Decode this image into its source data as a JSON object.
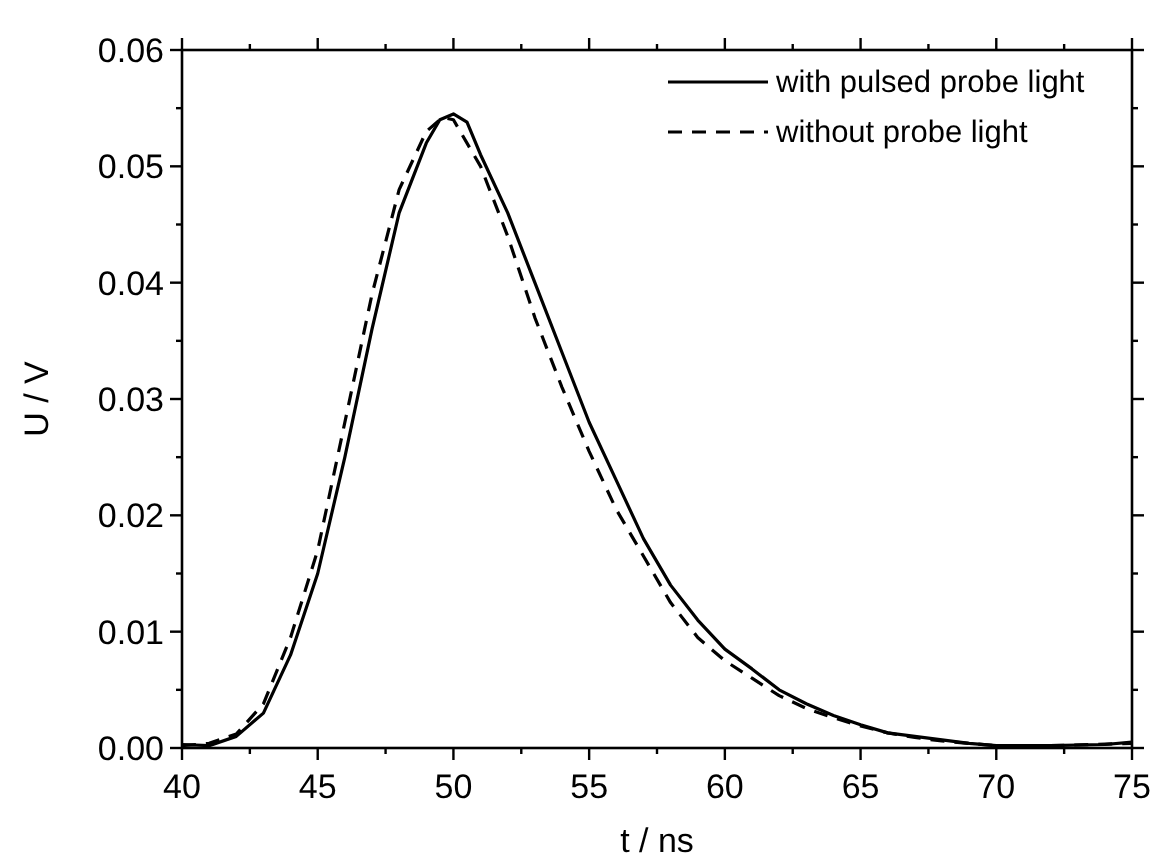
{
  "chart_data": {
    "type": "line",
    "xlabel": "t / ns",
    "ylabel": "U / V",
    "xlim": [
      40,
      75
    ],
    "ylim": [
      0,
      0.06
    ],
    "xticks": [
      40,
      {
        "value": 42.5,
        "label": null
      },
      45,
      {
        "value": 47.5,
        "label": null
      },
      50,
      {
        "value": 52.5,
        "label": null
      },
      55,
      {
        "value": 57.5,
        "label": null
      },
      60,
      {
        "value": 62.5,
        "label": null
      },
      65,
      {
        "value": 67.5,
        "label": null
      },
      70,
      {
        "value": 72.5,
        "label": null
      },
      75
    ],
    "yticks": [
      {
        "value": 0,
        "label": "0.00"
      },
      {
        "value": 0.005,
        "label": null
      },
      {
        "value": 0.01,
        "label": "0.01"
      },
      {
        "value": 0.015,
        "label": null
      },
      {
        "value": 0.02,
        "label": "0.02"
      },
      {
        "value": 0.025,
        "label": null
      },
      {
        "value": 0.03,
        "label": "0.03"
      },
      {
        "value": 0.035,
        "label": null
      },
      {
        "value": 0.04,
        "label": "0.04"
      },
      {
        "value": 0.045,
        "label": null
      },
      {
        "value": 0.05,
        "label": "0.05"
      },
      {
        "value": 0.055,
        "label": null
      },
      {
        "value": 0.06,
        "label": "0.06"
      }
    ],
    "grid": false,
    "legend": "top right",
    "series": [
      {
        "name": "with pulsed probe light",
        "color": "#000000",
        "line_style": "solid",
        "x": [
          40,
          41,
          42,
          43,
          44,
          45,
          46,
          47,
          48,
          49,
          49.5,
          50,
          50.5,
          51,
          52,
          53,
          54,
          55,
          56,
          57,
          58,
          59,
          60,
          61,
          62,
          63,
          64,
          65,
          66,
          67,
          68,
          69,
          70,
          72,
          74,
          75
        ],
        "values": [
          0.0003,
          0.0002,
          0.001,
          0.003,
          0.008,
          0.015,
          0.025,
          0.036,
          0.046,
          0.052,
          0.054,
          0.0545,
          0.0538,
          0.051,
          0.046,
          0.04,
          0.034,
          0.028,
          0.023,
          0.018,
          0.014,
          0.011,
          0.0085,
          0.0068,
          0.005,
          0.0038,
          0.0028,
          0.002,
          0.0013,
          0.001,
          0.0007,
          0.0004,
          0.0002,
          0.0002,
          0.0003,
          0.0005
        ]
      },
      {
        "name": "without probe light",
        "color": "#000000",
        "line_style": "dashed",
        "x": [
          40,
          41,
          42,
          43,
          44,
          45,
          46,
          47,
          48,
          49,
          49.6,
          50,
          51,
          52,
          53,
          54,
          55,
          56,
          57,
          58,
          59,
          60,
          61,
          62,
          63,
          64,
          65,
          66,
          67,
          68,
          70,
          72,
          75
        ],
        "values": [
          0.0002,
          0.0004,
          0.0012,
          0.0038,
          0.0095,
          0.017,
          0.028,
          0.039,
          0.048,
          0.053,
          0.0542,
          0.054,
          0.05,
          0.044,
          0.037,
          0.031,
          0.0255,
          0.0205,
          0.0165,
          0.0125,
          0.0095,
          0.0075,
          0.006,
          0.0045,
          0.0034,
          0.0026,
          0.0019,
          0.0013,
          0.0009,
          0.0006,
          0.0002,
          0.0002,
          0.0004
        ]
      }
    ]
  }
}
